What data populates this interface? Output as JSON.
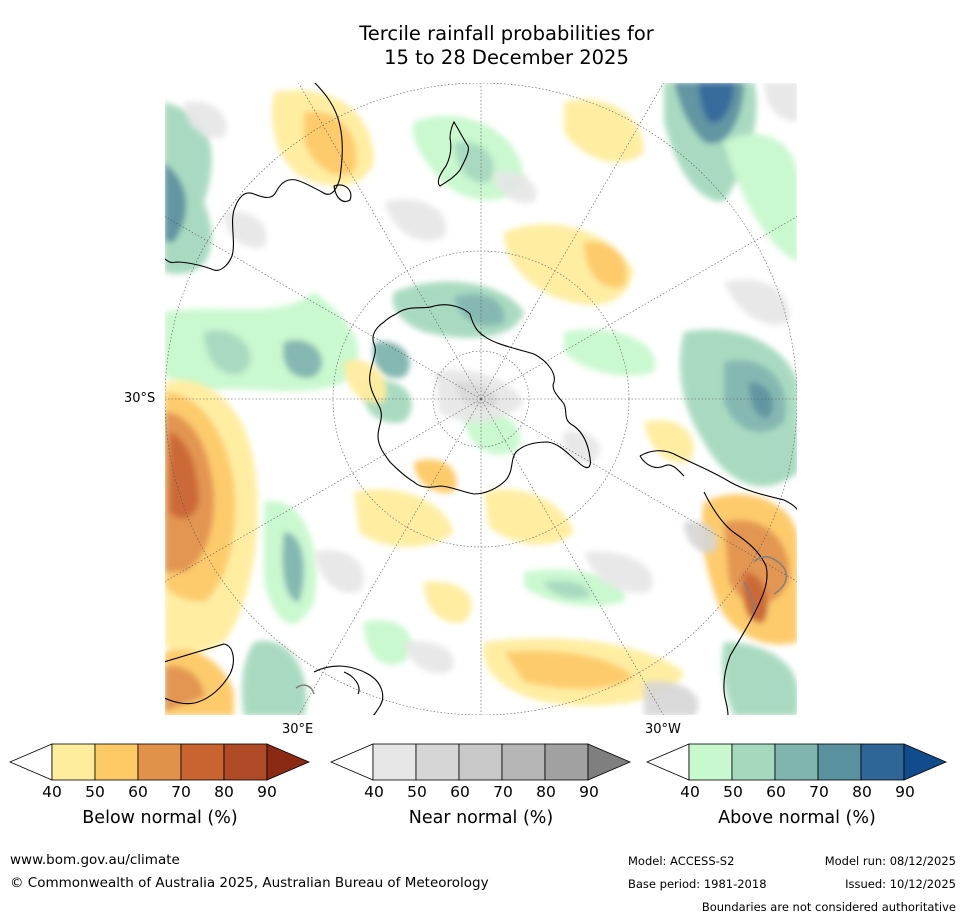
{
  "title": {
    "line1": "Tercile rainfall probabilities for",
    "line2": "15 to 28 December 2025"
  },
  "map": {
    "projection": "south-polar stereographic",
    "region": "Southern Hemisphere / Antarctica",
    "lat_label": "30°S",
    "lon_labels": {
      "east": "30°E",
      "west": "30°W"
    }
  },
  "legend": {
    "ticks": [
      "40",
      "50",
      "60",
      "70",
      "80",
      "90"
    ],
    "below": {
      "label": "Below normal (%)",
      "colors": [
        "#ffffff",
        "#ffed9e",
        "#fdc965",
        "#e2914a",
        "#c9632f",
        "#ae4a25",
        "#8b2a14"
      ]
    },
    "near": {
      "label": "Near normal (%)",
      "colors": [
        "#ffffff",
        "#e6e6e6",
        "#d6d6d6",
        "#c8c8c8",
        "#b6b6b6",
        "#a1a1a1",
        "#7f7f7f"
      ]
    },
    "above": {
      "label": "Above normal (%)",
      "colors": [
        "#ffffff",
        "#c8f8cd",
        "#a5d9be",
        "#7fb5ae",
        "#5a919e",
        "#2f6597",
        "#114c8c"
      ]
    }
  },
  "footer": {
    "website": "www.bom.gov.au/climate",
    "copyright": "© Commonwealth of Australia 2025, Australian Bureau of Meteorology",
    "model": "Model: ACCESS-S2",
    "base_period": "Base period: 1981-2018",
    "model_run": "Model run: 08/12/2025",
    "issued": "Issued: 10/12/2025",
    "disclaimer": "Boundaries are not considered authoritative"
  }
}
